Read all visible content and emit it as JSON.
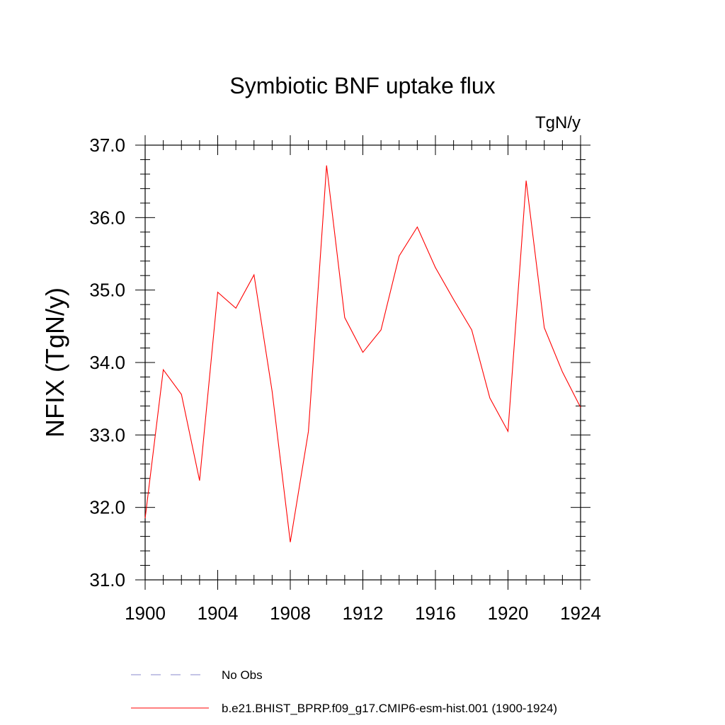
{
  "chart_data": {
    "type": "line",
    "title": "Symbiotic BNF uptake flux",
    "units_label": "TgN/y",
    "xlabel": "",
    "ylabel": "NFIX  (TgN/y)",
    "xlim": [
      1900,
      1924
    ],
    "ylim": [
      31.0,
      37.0
    ],
    "x_ticks": [
      1900,
      1904,
      1908,
      1912,
      1916,
      1920,
      1924
    ],
    "x_tick_labels": [
      "1900",
      "1904",
      "1908",
      "1912",
      "1916",
      "1920",
      "1924"
    ],
    "y_ticks": [
      31.0,
      32.0,
      33.0,
      34.0,
      35.0,
      36.0,
      37.0
    ],
    "y_tick_labels": [
      "31.0",
      "32.0",
      "33.0",
      "34.0",
      "35.0",
      "36.0",
      "37.0"
    ],
    "series": [
      {
        "name": "b.e21.BHIST_BPRP.f09_g17.CMIP6-esm-hist.001 (1900-1924)",
        "color": "#ff0000",
        "style": "solid",
        "x": [
          1900,
          1901,
          1902,
          1903,
          1904,
          1905,
          1906,
          1907,
          1908,
          1909,
          1910,
          1911,
          1912,
          1913,
          1914,
          1915,
          1916,
          1917,
          1918,
          1919,
          1920,
          1921,
          1922,
          1923,
          1924
        ],
        "values": [
          31.85,
          33.9,
          33.56,
          32.37,
          34.97,
          34.75,
          35.21,
          33.6,
          31.52,
          33.05,
          36.72,
          34.62,
          34.14,
          34.45,
          35.47,
          35.87,
          35.31,
          34.87,
          34.45,
          33.51,
          33.05,
          36.51,
          34.48,
          33.87,
          33.38
        ]
      }
    ],
    "legend": {
      "position": "bottom",
      "entries": [
        {
          "label": "No Obs",
          "color": "#8888cc",
          "style": "dashed"
        },
        {
          "label": "b.e21.BHIST_BPRP.f09_g17.CMIP6-esm-hist.001 (1900-1924)",
          "color": "#ff0000",
          "style": "solid"
        }
      ]
    }
  }
}
